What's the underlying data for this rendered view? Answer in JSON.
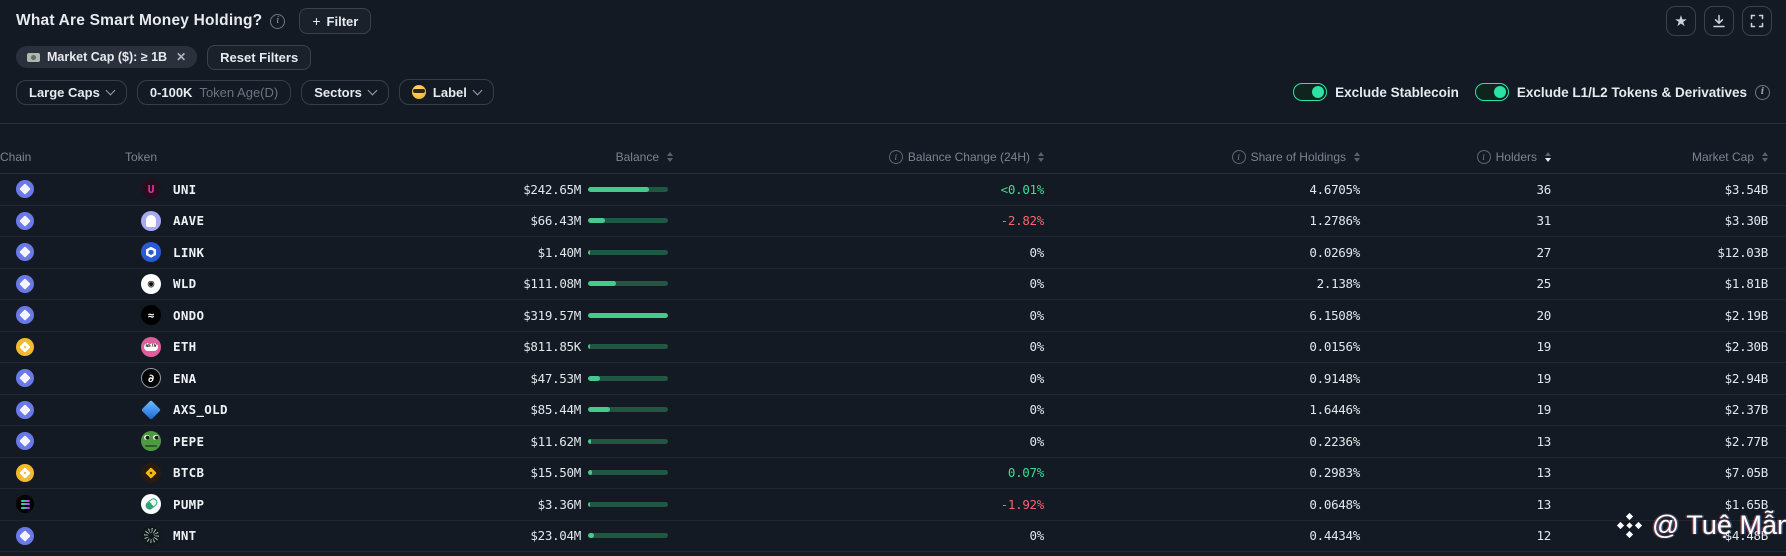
{
  "header": {
    "title": "What Are Smart Money Holding?",
    "filter_button_label": "Filter"
  },
  "icons": {
    "plus": "+",
    "close": "✕",
    "star": "★",
    "info": "i"
  },
  "filters": {
    "chip_label": "Market Cap ($): ≥ 1B",
    "reset_label": "Reset Filters",
    "dropdowns": [
      {
        "label": "Large Caps",
        "chevron": true
      },
      {
        "label": "0-100K",
        "suffix": "Token Age(D)"
      },
      {
        "label": "Sectors",
        "chevron": true
      },
      {
        "label": "Label",
        "icon": "sunglasses-emoji-icon",
        "chevron": true
      }
    ],
    "toggles": [
      {
        "label": "Exclude Stablecoin",
        "on": true
      },
      {
        "label": "Exclude L1/L2 Tokens & Derivatives",
        "on": true,
        "info": true
      }
    ]
  },
  "colors": {
    "up": "#3edc96",
    "down": "#f2656f",
    "flat": "#e2e7ec",
    "bar_fill": "#47c98d",
    "bar_track": "#1f5742",
    "toggle": "#2be3a4"
  },
  "chain_icons": {
    "ethereum": {
      "bg": "#6979e8"
    },
    "bnb": {
      "bg": "#f3ba2f"
    },
    "solana": {
      "bg": "#000000"
    }
  },
  "token_icons": {
    "uni": {
      "bg": "#23101f",
      "glyph": "U",
      "fg": "#f02e9e"
    },
    "aave": {
      "bg": "#a6aaf2",
      "shape": "ghost"
    },
    "link": {
      "bg": "#2a5ada",
      "shape": "hexagon"
    },
    "wld": {
      "bg": "#ffffff",
      "glyph": "◉",
      "fg": "#111111"
    },
    "ondo": {
      "bg": "#000000",
      "glyph": "≈",
      "fg": "#ffffff"
    },
    "weth": {
      "bg": "#e05c9d",
      "shape": "band",
      "glyph": "WETH"
    },
    "ena": {
      "bg": "#050505",
      "glyph": "∂",
      "fg": "#ffffff",
      "border": "#8f969e"
    },
    "axs": {
      "bg": "transparent",
      "shape": "diamond"
    },
    "pepe": {
      "bg": "#4d9a43",
      "shape": "pepe"
    },
    "btcb": {
      "bg": "#281c10",
      "shape": "bnb-diamond",
      "fg": "#f0b90b"
    },
    "pump": {
      "bg": "#ffffff",
      "shape": "pill"
    },
    "mnt": {
      "bg": "#101819",
      "shape": "starburst"
    }
  },
  "table": {
    "columns": [
      {
        "key": "chain",
        "label": "Chain",
        "align": "left"
      },
      {
        "key": "token",
        "label": "Token",
        "align": "left"
      },
      {
        "key": "balance",
        "label": "Balance",
        "align": "right",
        "sortable": true
      },
      {
        "key": "change",
        "label": "Balance Change (24H)",
        "align": "right",
        "info": true,
        "sortable": true
      },
      {
        "key": "share",
        "label": "Share of Holdings",
        "align": "right",
        "info": true,
        "sortable": true
      },
      {
        "key": "holders",
        "label": "Holders",
        "align": "right",
        "info": true,
        "sortable": true,
        "sort": "desc"
      },
      {
        "key": "mcap",
        "label": "Market Cap",
        "align": "right",
        "sortable": true
      }
    ],
    "rows": [
      {
        "chain": "ethereum",
        "token": "UNI",
        "icon": "uni",
        "balance": "$242.65M",
        "bar_pct": 76,
        "change": "<0.01%",
        "change_dir": "up",
        "share": "4.6705%",
        "holders": "36",
        "mcap": "$3.54B"
      },
      {
        "chain": "ethereum",
        "token": "AAVE",
        "icon": "aave",
        "balance": "$66.43M",
        "bar_pct": 21,
        "change": "-2.82%",
        "change_dir": "down",
        "share": "1.2786%",
        "holders": "31",
        "mcap": "$3.30B"
      },
      {
        "chain": "ethereum",
        "token": "LINK",
        "icon": "link",
        "balance": "$1.40M",
        "bar_pct": 1,
        "change": "0%",
        "change_dir": "flat",
        "share": "0.0269%",
        "holders": "27",
        "mcap": "$12.03B"
      },
      {
        "chain": "ethereum",
        "token": "WLD",
        "icon": "wld",
        "balance": "$111.08M",
        "bar_pct": 35,
        "change": "0%",
        "change_dir": "flat",
        "share": "2.138%",
        "holders": "25",
        "mcap": "$1.81B"
      },
      {
        "chain": "ethereum",
        "token": "ONDO",
        "icon": "ondo",
        "balance": "$319.57M",
        "bar_pct": 100,
        "change": "0%",
        "change_dir": "flat",
        "share": "6.1508%",
        "holders": "20",
        "mcap": "$2.19B"
      },
      {
        "chain": "bnb",
        "token": "ETH",
        "icon": "weth",
        "balance": "$811.85K",
        "bar_pct": 1,
        "change": "0%",
        "change_dir": "flat",
        "share": "0.0156%",
        "holders": "19",
        "mcap": "$2.30B"
      },
      {
        "chain": "ethereum",
        "token": "ENA",
        "icon": "ena",
        "balance": "$47.53M",
        "bar_pct": 15,
        "change": "0%",
        "change_dir": "flat",
        "share": "0.9148%",
        "holders": "19",
        "mcap": "$2.94B"
      },
      {
        "chain": "ethereum",
        "token": "AXS_OLD",
        "icon": "axs",
        "balance": "$85.44M",
        "bar_pct": 27,
        "change": "0%",
        "change_dir": "flat",
        "share": "1.6446%",
        "holders": "19",
        "mcap": "$2.37B"
      },
      {
        "chain": "ethereum",
        "token": "PEPE",
        "icon": "pepe",
        "balance": "$11.62M",
        "bar_pct": 4,
        "change": "0%",
        "change_dir": "flat",
        "share": "0.2236%",
        "holders": "13",
        "mcap": "$2.77B"
      },
      {
        "chain": "bnb",
        "token": "BTCB",
        "icon": "btcb",
        "balance": "$15.50M",
        "bar_pct": 5,
        "change": "0.07%",
        "change_dir": "up",
        "share": "0.2983%",
        "holders": "13",
        "mcap": "$7.05B"
      },
      {
        "chain": "solana",
        "token": "PUMP",
        "icon": "pump",
        "balance": "$3.36M",
        "bar_pct": 1,
        "change": "-1.92%",
        "change_dir": "down",
        "share": "0.0648%",
        "holders": "13",
        "mcap": "$1.65B"
      },
      {
        "chain": "ethereum",
        "token": "MNT",
        "icon": "mnt",
        "balance": "$23.04M",
        "bar_pct": 8,
        "change": "0%",
        "change_dir": "flat",
        "share": "0.4434%",
        "holders": "12",
        "mcap": "$4.48B"
      }
    ]
  },
  "watermark": {
    "handle": "@ Tuệ Mẫn"
  }
}
